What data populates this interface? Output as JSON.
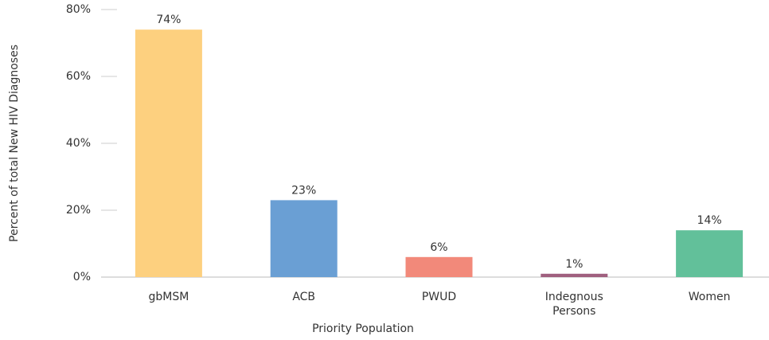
{
  "chart_data": {
    "type": "bar",
    "x_label": "Priority Population",
    "y_label": "Percent of total New HIV Diagnoses",
    "categories": [
      "gbMSM",
      "ACB",
      "PWUD",
      "Indegnous Persons",
      "Women"
    ],
    "values": [
      74,
      23,
      6,
      1,
      14
    ],
    "value_labels": [
      "74%",
      "23%",
      "6%",
      "1%",
      "14%"
    ],
    "colors": [
      "#fdd07f",
      "#6a9fd4",
      "#f2897a",
      "#a0607f",
      "#62c09a"
    ],
    "ylim": [
      0,
      80
    ],
    "yticks": [
      {
        "value": 0,
        "label": "0%"
      },
      {
        "value": 20,
        "label": "20%"
      },
      {
        "value": 40,
        "label": "40%"
      },
      {
        "value": 60,
        "label": "60%"
      },
      {
        "value": 80,
        "label": "80%"
      }
    ],
    "grid": false
  }
}
